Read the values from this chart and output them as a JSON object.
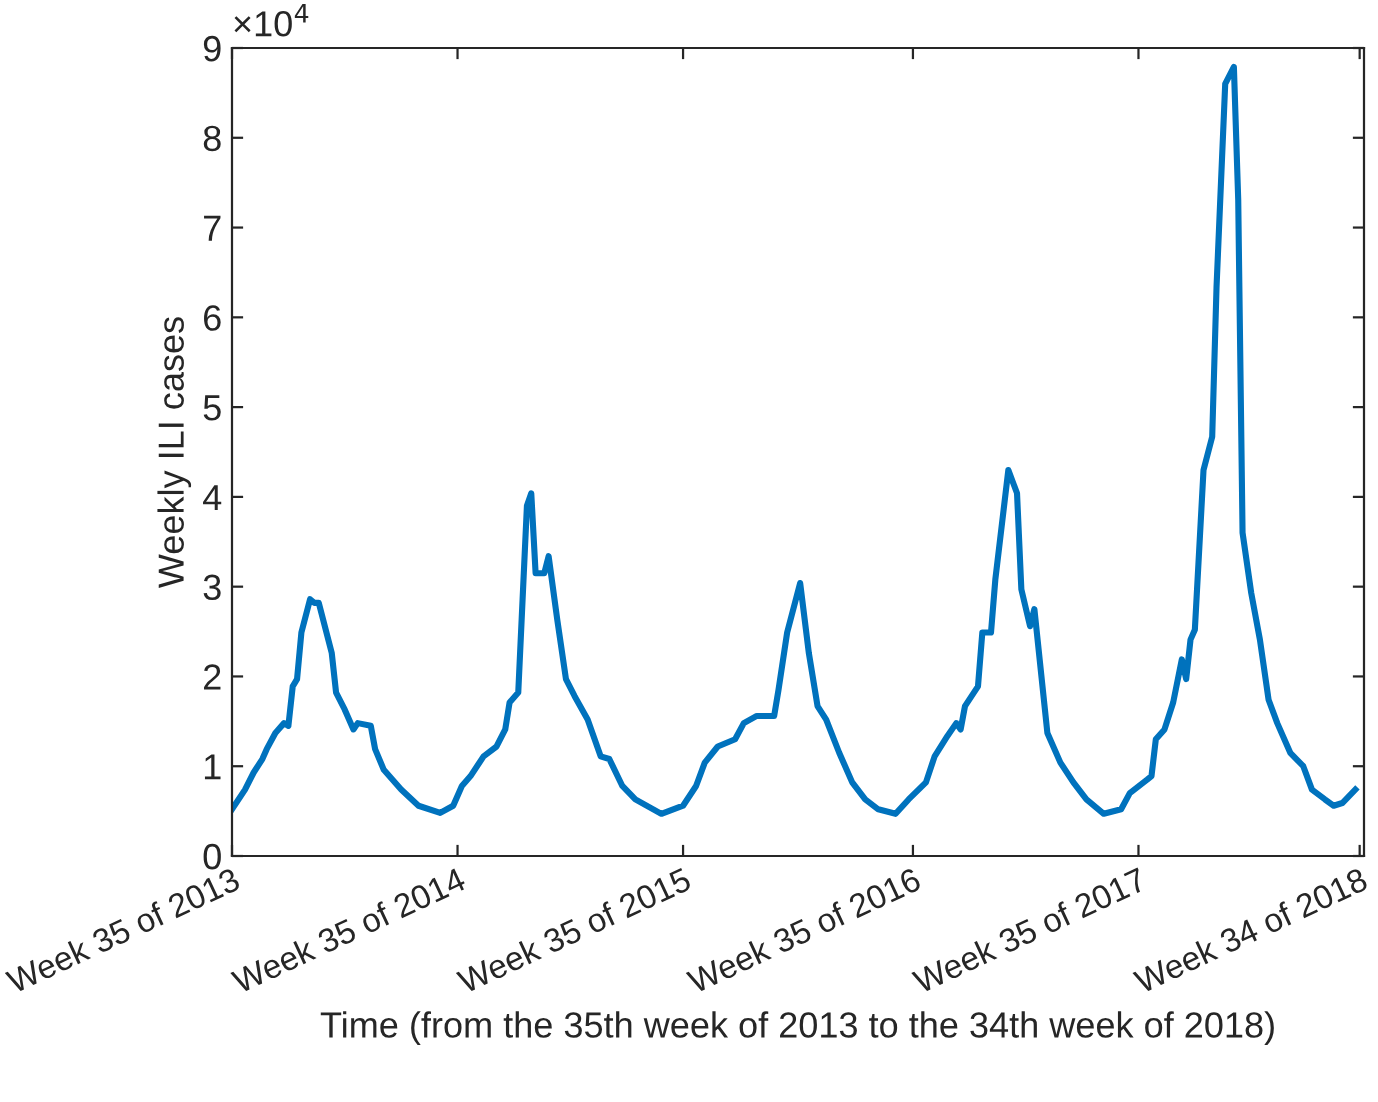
{
  "chart_data": {
    "type": "line",
    "xlabel": "Time (from the 35th week of 2013 to the 34th week of 2018)",
    "ylabel": "Weekly ILI cases",
    "annotations": [
      "×10$^{4}$"
    ],
    "xlim": [
      "2013-08-26",
      "2018-08-27"
    ],
    "xticks": [
      {
        "value": "2013-08-26",
        "label": "Week 35 of 2013"
      },
      {
        "value": "2014-08-25",
        "label": "Week 35 of 2014"
      },
      {
        "value": "2015-08-24",
        "label": "Week 35 of 2015"
      },
      {
        "value": "2016-08-29",
        "label": "Week 35 of 2016"
      },
      {
        "value": "2017-08-28",
        "label": "Week 35 of 2017"
      },
      {
        "value": "2018-08-20",
        "label": "Week 34 of 2018"
      }
    ],
    "ylim": [
      0,
      9
    ],
    "yticks": [
      0,
      1,
      2,
      3,
      4,
      5,
      6,
      7,
      8,
      9
    ],
    "grid": false,
    "marker": "none",
    "line_style": "solid",
    "series": [
      {
        "color": "#0072bd",
        "x": [
          "2013-08-26",
          "2013-09-16",
          "2013-09-30",
          "2013-10-14",
          "2013-10-21",
          "2013-11-04",
          "2013-11-18",
          "2013-11-25",
          "2013-12-02",
          "2013-12-09",
          "2013-12-16",
          "2013-12-30",
          "2014-01-06",
          "2014-01-13",
          "2014-02-03",
          "2014-02-10",
          "2014-02-24",
          "2014-03-10",
          "2014-03-17",
          "2014-04-07",
          "2014-04-14",
          "2014-04-28",
          "2014-05-26",
          "2014-06-23",
          "2014-07-28",
          "2014-08-18",
          "2014-09-01",
          "2014-09-15",
          "2014-10-06",
          "2014-10-27",
          "2014-11-10",
          "2014-11-17",
          "2014-12-01",
          "2014-12-08",
          "2014-12-15",
          "2014-12-22",
          "2014-12-29",
          "2015-01-12",
          "2015-01-19",
          "2015-02-02",
          "2015-02-16",
          "2015-03-02",
          "2015-03-23",
          "2015-04-13",
          "2015-04-27",
          "2015-05-18",
          "2015-06-08",
          "2015-07-20",
          "2015-08-24",
          "2015-09-14",
          "2015-09-28",
          "2015-10-19",
          "2015-11-16",
          "2015-11-30",
          "2015-12-21",
          "2016-01-18",
          "2016-01-25",
          "2016-02-08",
          "2016-02-29",
          "2016-03-14",
          "2016-03-28",
          "2016-04-11",
          "2016-05-02",
          "2016-05-23",
          "2016-06-13",
          "2016-07-04",
          "2016-08-01",
          "2016-08-22",
          "2016-09-19",
          "2016-10-03",
          "2016-10-24",
          "2016-11-07",
          "2016-11-14",
          "2016-11-21",
          "2016-12-12",
          "2016-12-19",
          "2017-01-02",
          "2017-01-09",
          "2017-01-30",
          "2017-02-13",
          "2017-02-20",
          "2017-03-06",
          "2017-03-13",
          "2017-04-03",
          "2017-04-24",
          "2017-05-15",
          "2017-06-05",
          "2017-07-03",
          "2017-07-31",
          "2017-08-14",
          "2017-09-11",
          "2017-09-18",
          "2017-09-25",
          "2017-10-09",
          "2017-10-23",
          "2017-11-06",
          "2017-11-13",
          "2017-11-20",
          "2017-11-27",
          "2017-12-11",
          "2017-12-25",
          "2018-01-01",
          "2018-01-15",
          "2018-01-29",
          "2018-02-05",
          "2018-02-12",
          "2018-02-26",
          "2018-03-12",
          "2018-03-26",
          "2018-04-09",
          "2018-04-30",
          "2018-05-21",
          "2018-06-04",
          "2018-06-25",
          "2018-07-09",
          "2018-07-23",
          "2018-08-13"
        ],
        "values": [
          0.52,
          0.74,
          0.93,
          1.08,
          1.19,
          1.37,
          1.48,
          1.45,
          1.89,
          1.97,
          2.49,
          2.86,
          2.82,
          2.82,
          2.26,
          1.82,
          1.63,
          1.41,
          1.48,
          1.45,
          1.19,
          0.96,
          0.74,
          0.56,
          0.48,
          0.56,
          0.78,
          0.89,
          1.11,
          1.22,
          1.41,
          1.71,
          1.82,
          2.86,
          3.9,
          4.04,
          3.15,
          3.15,
          3.34,
          2.63,
          1.97,
          1.78,
          1.52,
          1.11,
          1.08,
          0.78,
          0.63,
          0.47,
          0.56,
          0.78,
          1.04,
          1.22,
          1.3,
          1.48,
          1.56,
          1.56,
          1.85,
          2.49,
          3.04,
          2.26,
          1.67,
          1.52,
          1.15,
          0.82,
          0.63,
          0.52,
          0.47,
          0.63,
          0.82,
          1.11,
          1.34,
          1.48,
          1.41,
          1.67,
          1.89,
          2.49,
          2.49,
          3.08,
          4.3,
          4.04,
          2.97,
          2.56,
          2.75,
          1.37,
          1.04,
          0.82,
          0.63,
          0.47,
          0.52,
          0.7,
          0.85,
          0.89,
          1.3,
          1.41,
          1.71,
          2.19,
          1.97,
          2.41,
          2.52,
          4.3,
          4.67,
          6.34,
          8.6,
          8.79,
          7.31,
          3.6,
          2.93,
          2.41,
          1.74,
          1.48,
          1.15,
          1,
          0.74,
          0.63,
          0.56,
          0.59,
          0.74
        ]
      }
    ]
  }
}
